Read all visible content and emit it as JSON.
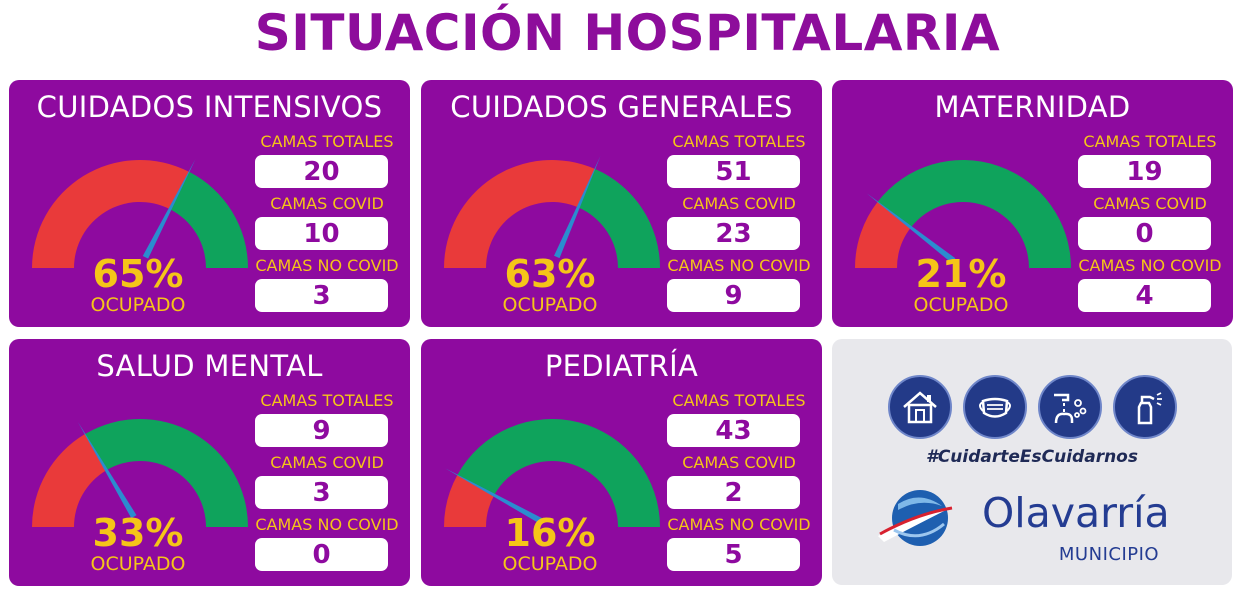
{
  "title": "SITUACIÓN HOSPITALARIA",
  "labels": {
    "totales": "CAMAS TOTALES",
    "covid": "CAMAS COVID",
    "no_covid": "CAMAS NO COVID",
    "occupied": "OCUPADO"
  },
  "colors": {
    "card": "#8e0a9f",
    "label": "#f5c518",
    "gauge_red": "#e93a3a",
    "gauge_green": "#0fa35c",
    "needle": "#2b8ccf"
  },
  "cards": [
    {
      "name": "CUIDADOS INTENSIVOS",
      "pct_text": "65%",
      "occupancy": 0.65,
      "totales": "20",
      "covid": "10",
      "no_covid": "3"
    },
    {
      "name": "CUIDADOS GENERALES",
      "pct_text": "63%",
      "occupancy": 0.63,
      "totales": "51",
      "covid": "23",
      "no_covid": "9"
    },
    {
      "name": "MATERNIDAD",
      "pct_text": "21%",
      "occupancy": 0.21,
      "totales": "19",
      "covid": "0",
      "no_covid": "4"
    },
    {
      "name": "SALUD MENTAL",
      "pct_text": "33%",
      "occupancy": 0.33,
      "totales": "9",
      "covid": "3",
      "no_covid": "0"
    },
    {
      "name": "PEDIATRÍA",
      "pct_text": "16%",
      "occupancy": 0.16,
      "totales": "43",
      "covid": "2",
      "no_covid": "5"
    }
  ],
  "info_panel": {
    "icons": [
      "house-icon",
      "face-mask-icon",
      "hand-washing-icon",
      "sanitizer-spray-icon"
    ],
    "hashtag": "#CuidarteEsCuidarnos",
    "brand": "Olavarría",
    "subtitle": "MUNICIPIO"
  }
}
